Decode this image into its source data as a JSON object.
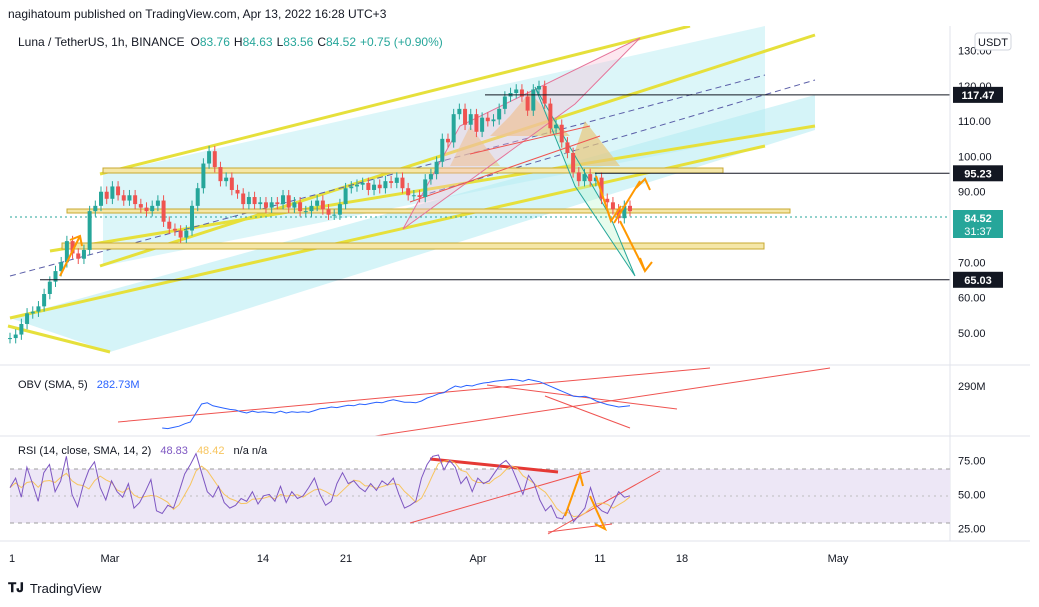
{
  "header": {
    "publisher_line": "nagihatoum published on TradingView.com, Apr 13, 2022 16:28 UTC+3"
  },
  "symbol": {
    "title": "Luna / TetherUS, 1h, BINANCE",
    "open_label": "O",
    "open": "83.76",
    "high_label": "H",
    "high": "84.63",
    "low_label": "L",
    "low": "83.56",
    "close_label": "C",
    "close": "84.52",
    "change": "+0.75 (+0.90%)",
    "currency": "USDT"
  },
  "colors": {
    "up": "#26a69a",
    "down": "#ef5350",
    "channel_fill": "#b2ebf2",
    "yellow": "#e6e03b",
    "orange": "#ff9800",
    "obv_line": "#2962ff",
    "rsi_line": "#7e57c2",
    "rsi_ma": "#f7c55f",
    "rsi_band": "#ede7f6",
    "price_tag": "#26a69a",
    "black_tag": "#131722"
  },
  "chart_data": [
    {
      "type": "line",
      "title": "",
      "panel": "price",
      "ylabel": "",
      "ylim": [
        42,
        137
      ],
      "y_ticks": [
        "130.00",
        "120.00",
        "110.00",
        "100.00",
        "90.00",
        "70.00",
        "60.00",
        "50.00"
      ],
      "y_tick_values": [
        130,
        120,
        110,
        100,
        90,
        70,
        60,
        50
      ],
      "x_ticks": [
        "1",
        "Mar",
        "14",
        "21",
        "Apr",
        "11",
        "18",
        "May"
      ],
      "series": [
        {
          "values": [
            48.5,
            49.5,
            52.5,
            55.5,
            56,
            57.5,
            61,
            64.5,
            67.5,
            70,
            76,
            72.5,
            71,
            73.5,
            84.5,
            86,
            90,
            88,
            91.5,
            89,
            87.5,
            89,
            86.5,
            85.5,
            84.5,
            86,
            87.5,
            81.5,
            79.5,
            79,
            77,
            79,
            86,
            91,
            98,
            101.5,
            97,
            93,
            94,
            90.5,
            89.5,
            86.5,
            88.5,
            86.5,
            87,
            85.5,
            87,
            86.5,
            89,
            85.5,
            87,
            84.5,
            84.5,
            86,
            87.5,
            85,
            83.5,
            83.5,
            86.5,
            91,
            91.5,
            92,
            92.5,
            90.5,
            92,
            91,
            93,
            92.5,
            94,
            91,
            89,
            89,
            88.5,
            93.5,
            95,
            98.5,
            105,
            104,
            112,
            113.5,
            109,
            112,
            107,
            111,
            110,
            110.5,
            113.5,
            117,
            118,
            119,
            117,
            113,
            119,
            120,
            115,
            108,
            109,
            104,
            101,
            95.5,
            93,
            95,
            93,
            94,
            88,
            87,
            85,
            82.5,
            86,
            84.5
          ]
        }
      ],
      "levels": [
        "117.47",
        "95.23",
        "65.03"
      ],
      "last_price": "84.52",
      "countdown": "31:37"
    },
    {
      "type": "line",
      "panel": "obv",
      "title": "OBV (SMA, 5)",
      "value_label": "282.73M",
      "y_ticks": [
        "290M"
      ],
      "series": [
        {
          "values": [
            200,
            200,
            200,
            200,
            200,
            200,
            200,
            200,
            200,
            200,
            200,
            200,
            200,
            200,
            200,
            200,
            200,
            200,
            200,
            200,
            200,
            200,
            200,
            200,
            200,
            200,
            200,
            205,
            204,
            206,
            208,
            212,
            215,
            230,
            245,
            247,
            242,
            240,
            238,
            236,
            235,
            232,
            230,
            233,
            231,
            232,
            231,
            230,
            233,
            230,
            232,
            231,
            232,
            231,
            234,
            237,
            238,
            240,
            239,
            241,
            243,
            242,
            245,
            244,
            246,
            248,
            247,
            250,
            252,
            250,
            248,
            248,
            247,
            250,
            255,
            258,
            262,
            264,
            270,
            275,
            273,
            276,
            275,
            278,
            280,
            281,
            283,
            284,
            285,
            286,
            285,
            283,
            286,
            284,
            282,
            278,
            274,
            270,
            266,
            262,
            258,
            257,
            258,
            255,
            250,
            247,
            244,
            242,
            240,
            241,
            242
          ]
        }
      ]
    },
    {
      "type": "line",
      "panel": "rsi",
      "title": "RSI (14, close, SMA, 14, 2)",
      "rsi_value": "48.83",
      "ma_value": "48.42",
      "extra": "n/a  n/a",
      "ylim": [
        18,
        90
      ],
      "y_ticks": [
        "75.00",
        "50.00",
        "25.00"
      ],
      "y_tick_values": [
        75,
        50,
        25
      ],
      "series": [
        {
          "name": "",
          "values": [
            55,
            62,
            48,
            70,
            58,
            45,
            66,
            72,
            52,
            60,
            78,
            50,
            41,
            57,
            68,
            74,
            55,
            46,
            60,
            52,
            48,
            58,
            40,
            44,
            52,
            61,
            38,
            36,
            42,
            40,
            52,
            65,
            72,
            80,
            66,
            52,
            48,
            56,
            44,
            40,
            42,
            47,
            45,
            52,
            43,
            49,
            50,
            45,
            56,
            44,
            52,
            47,
            49,
            55,
            62,
            50,
            42,
            45,
            58,
            66,
            58,
            60,
            55,
            52,
            58,
            53,
            60,
            57,
            62,
            50,
            40,
            42,
            45,
            62,
            72,
            78,
            79,
            68,
            75,
            70,
            58,
            63,
            52,
            62,
            58,
            60,
            66,
            72,
            75,
            70,
            60,
            50,
            64,
            58,
            46,
            38,
            42,
            33,
            32,
            40,
            30,
            35,
            40,
            55,
            42,
            38,
            36,
            44,
            52,
            48,
            49
          ]
        }
      ]
    }
  ],
  "footer": {
    "brand": "TradingView"
  }
}
